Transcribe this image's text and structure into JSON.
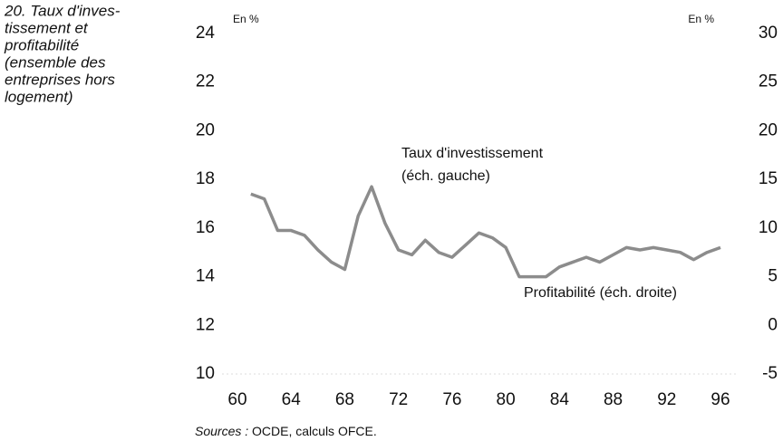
{
  "chart_data": {
    "type": "line",
    "title_lines": [
      "20. Taux d'inves-",
      "tissement et",
      "profitabilité",
      "(ensemble des",
      "entreprises hors",
      "logement)"
    ],
    "y_unit": "En %",
    "y2_unit": "En %",
    "annotations": [
      {
        "lines": [
          "Taux d'investissement",
          "(éch. gauche)"
        ]
      },
      {
        "lines": [
          "Profitabilité (éch. droite)"
        ]
      }
    ],
    "source_label": "Sources :",
    "source_text": "OCDE, calculs OFCE.",
    "x": [
      61,
      62,
      63,
      64,
      65,
      66,
      67,
      68,
      69,
      70,
      71,
      72,
      73,
      74,
      75,
      76,
      77,
      78,
      79,
      80,
      81,
      82,
      83,
      84,
      85,
      86,
      87,
      88,
      89,
      90,
      91,
      92,
      93,
      94,
      95,
      96
    ],
    "series": [
      {
        "color": "#8c8c8c",
        "values": [
          17.4,
          17.2,
          15.9,
          15.9,
          15.7,
          15.1,
          14.6,
          14.3,
          16.5,
          17.7,
          16.2,
          15.1,
          14.9,
          15.5,
          15.0,
          14.8,
          15.3,
          15.8,
          15.6,
          15.2,
          14.0,
          14.0,
          14.0,
          14.4,
          14.6,
          14.8,
          14.6,
          14.9,
          15.2,
          15.1,
          15.2,
          15.1,
          15.0,
          14.7,
          15.0,
          15.2
        ]
      }
    ],
    "xlim": [
      60,
      96
    ],
    "xticks": [
      60,
      64,
      68,
      72,
      76,
      80,
      84,
      88,
      92,
      96
    ],
    "ylim": [
      10,
      24
    ],
    "yticks": [
      10,
      12,
      14,
      16,
      18,
      20,
      22,
      24
    ],
    "y2lim": [
      -5,
      30
    ],
    "y2ticks": [
      -5,
      0,
      5,
      10,
      15,
      20,
      25,
      30
    ]
  }
}
